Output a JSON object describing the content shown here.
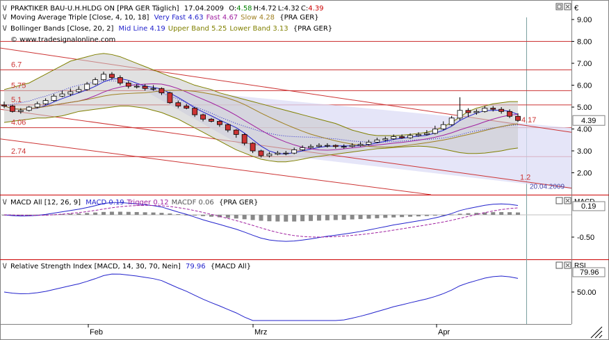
{
  "header": {
    "title": "PRAKTIKER BAU-U.H.HLDG ON [PRA GER  Täglich]",
    "date": "17.04.2009",
    "ohlc": [
      {
        "label": "O:",
        "value": "4.58",
        "color": "#008000"
      },
      {
        "label": "H:",
        "value": "4.72",
        "color": "#000000"
      },
      {
        "label": "L:",
        "value": "4.32",
        "color": "#000000"
      },
      {
        "label": "C:",
        "value": "4.39",
        "color": "#cc0000"
      }
    ],
    "currency": "€"
  },
  "indicators": {
    "ma_triple": {
      "name": "Moving Average Triple [Close, 4, 10, 18]",
      "parts": [
        {
          "text": "Very Fast 4.63",
          "color": "#2222cc"
        },
        {
          "text": "Fast 4.67",
          "color": "#a020a0"
        },
        {
          "text": "Slow 4.28",
          "color": "#a08020"
        }
      ],
      "suffix": "{PRA GER}"
    },
    "bollinger": {
      "name": "Bollinger Bands [Close, 20, 2]",
      "parts": [
        {
          "text": "Mid Line 4.19",
          "color": "#2222cc"
        },
        {
          "text": "Upper Band 5.25",
          "color": "#808000"
        },
        {
          "text": "Lower Band 3.13",
          "color": "#808000"
        }
      ],
      "suffix": "{PRA GER}"
    },
    "watermark": "© www.tradesignalonline.com"
  },
  "price_panel": {
    "y_ticks": [
      "9.00",
      "8.00",
      "7.00",
      "6.00",
      "5.00",
      "4.00",
      "3.00",
      "2.00"
    ],
    "last_price": "4.39",
    "level_labels": [
      "6.7",
      "5.75",
      "5.1",
      "4.06",
      "2.74",
      "4.17",
      "1.2"
    ],
    "trendline_date": "20.04.2009"
  },
  "macd_panel": {
    "title": "MACD All [12, 26, 9]",
    "parts": [
      {
        "text": "MACD 0.19",
        "color": "#2222cc"
      },
      {
        "text": "Trigger 0.12",
        "color": "#a020a0"
      },
      {
        "text": "MACDF 0.06",
        "color": "#555555"
      }
    ],
    "suffix": "{PRA GER}",
    "y_ticks": [
      "0.19",
      "-0.50"
    ],
    "scale_label": "MACD"
  },
  "rsi_panel": {
    "title": "Relative Strength Index [MACD, 14, 30, 70, Nein]",
    "value": "79.96",
    "value_color": "#2222cc",
    "suffix": "{MACD All}",
    "y_ticks": [
      "79.96",
      "50.00"
    ],
    "scale_label": "RSI"
  },
  "x_axis": {
    "labels": [
      "Feb",
      "Mrz",
      "Apr"
    ]
  },
  "chart_data": {
    "type": "candlestick",
    "title": "PRAKTIKER BAU-U.H.HLDG ON [PRA GER  Täglich]",
    "dates": [
      "2009-01-19",
      "2009-01-20",
      "2009-01-21",
      "2009-01-22",
      "2009-01-23",
      "2009-01-26",
      "2009-01-27",
      "2009-01-28",
      "2009-01-29",
      "2009-01-30",
      "2009-02-02",
      "2009-02-03",
      "2009-02-04",
      "2009-02-05",
      "2009-02-06",
      "2009-02-09",
      "2009-02-10",
      "2009-02-11",
      "2009-02-12",
      "2009-02-13",
      "2009-02-16",
      "2009-02-17",
      "2009-02-18",
      "2009-02-19",
      "2009-02-20",
      "2009-02-23",
      "2009-02-24",
      "2009-02-25",
      "2009-02-26",
      "2009-02-27",
      "2009-03-02",
      "2009-03-03",
      "2009-03-04",
      "2009-03-05",
      "2009-03-06",
      "2009-03-09",
      "2009-03-10",
      "2009-03-11",
      "2009-03-12",
      "2009-03-13",
      "2009-03-16",
      "2009-03-17",
      "2009-03-18",
      "2009-03-19",
      "2009-03-20",
      "2009-03-23",
      "2009-03-24",
      "2009-03-25",
      "2009-03-26",
      "2009-03-27",
      "2009-03-30",
      "2009-03-31",
      "2009-04-01",
      "2009-04-02",
      "2009-04-03",
      "2009-04-06",
      "2009-04-07",
      "2009-04-08",
      "2009-04-09",
      "2009-04-14",
      "2009-04-15",
      "2009-04-16",
      "2009-04-17"
    ],
    "open": [
      5.1,
      5.05,
      4.8,
      4.85,
      5.0,
      5.15,
      5.3,
      5.5,
      5.6,
      5.7,
      5.8,
      6.05,
      6.25,
      6.5,
      6.35,
      6.1,
      5.95,
      5.95,
      5.85,
      5.85,
      5.65,
      5.2,
      5.05,
      4.95,
      4.65,
      4.45,
      4.35,
      4.2,
      3.95,
      3.75,
      3.35,
      3.0,
      2.78,
      2.85,
      2.9,
      2.9,
      3.05,
      3.15,
      3.2,
      3.25,
      3.25,
      3.2,
      3.2,
      3.25,
      3.3,
      3.4,
      3.5,
      3.55,
      3.65,
      3.6,
      3.7,
      3.75,
      3.8,
      4.0,
      4.2,
      4.5,
      4.85,
      4.75,
      4.8,
      4.95,
      4.9,
      4.8,
      4.58
    ],
    "close": [
      5.05,
      4.8,
      4.85,
      5.0,
      5.15,
      5.3,
      5.5,
      5.6,
      5.7,
      5.8,
      6.05,
      6.25,
      6.5,
      6.35,
      6.1,
      5.95,
      5.95,
      5.85,
      5.85,
      5.65,
      5.2,
      5.05,
      4.95,
      4.65,
      4.45,
      4.35,
      4.2,
      3.95,
      3.75,
      3.35,
      3.0,
      2.78,
      2.85,
      2.9,
      2.9,
      3.05,
      3.15,
      3.2,
      3.25,
      3.25,
      3.2,
      3.2,
      3.25,
      3.3,
      3.4,
      3.5,
      3.55,
      3.65,
      3.6,
      3.7,
      3.75,
      3.8,
      4.0,
      4.2,
      4.5,
      4.85,
      4.75,
      4.8,
      4.95,
      4.9,
      4.8,
      4.58,
      4.39
    ],
    "high": [
      5.25,
      5.1,
      4.95,
      5.05,
      5.25,
      5.4,
      5.6,
      5.75,
      5.85,
      5.95,
      6.15,
      6.35,
      6.62,
      6.6,
      6.45,
      6.2,
      6.05,
      6.05,
      6.0,
      5.9,
      5.7,
      5.3,
      5.15,
      5.0,
      4.7,
      4.5,
      4.4,
      4.25,
      4.0,
      3.8,
      3.4,
      3.05,
      2.95,
      3.0,
      3.0,
      3.15,
      3.25,
      3.3,
      3.35,
      3.35,
      3.3,
      3.3,
      3.35,
      3.4,
      3.5,
      3.6,
      3.65,
      3.75,
      3.75,
      3.8,
      3.85,
      3.95,
      4.15,
      4.35,
      4.6,
      5.45,
      4.95,
      4.9,
      5.05,
      5.05,
      5.0,
      4.9,
      4.72
    ],
    "low": [
      4.95,
      4.75,
      4.7,
      4.8,
      4.95,
      5.1,
      5.25,
      5.45,
      5.5,
      5.65,
      5.75,
      6.0,
      6.2,
      6.25,
      6.0,
      5.85,
      5.85,
      5.75,
      5.75,
      5.55,
      5.15,
      4.95,
      4.9,
      4.55,
      4.35,
      4.3,
      4.1,
      3.85,
      3.6,
      3.25,
      2.9,
      2.7,
      2.7,
      2.8,
      2.8,
      2.85,
      3.0,
      3.1,
      3.15,
      3.15,
      3.1,
      3.1,
      3.15,
      3.2,
      3.25,
      3.35,
      3.45,
      3.5,
      3.55,
      3.55,
      3.65,
      3.7,
      3.75,
      3.95,
      4.15,
      4.4,
      4.55,
      4.65,
      4.75,
      4.8,
      4.7,
      4.5,
      4.32
    ],
    "bollinger_upper": [
      5.8,
      5.9,
      6.0,
      6.1,
      6.3,
      6.5,
      6.7,
      6.9,
      7.1,
      7.2,
      7.3,
      7.4,
      7.45,
      7.4,
      7.3,
      7.15,
      7.0,
      6.85,
      6.7,
      6.55,
      6.4,
      6.3,
      6.15,
      6.0,
      5.9,
      5.8,
      5.65,
      5.55,
      5.45,
      5.35,
      5.25,
      5.15,
      5.05,
      4.95,
      4.85,
      4.75,
      4.65,
      4.55,
      4.45,
      4.35,
      4.25,
      4.1,
      3.95,
      3.85,
      3.75,
      3.7,
      3.7,
      3.7,
      3.72,
      3.75,
      3.8,
      3.85,
      3.95,
      4.1,
      4.3,
      4.55,
      4.8,
      4.95,
      5.05,
      5.15,
      5.2,
      5.25,
      5.25
    ],
    "bollinger_lower": [
      4.3,
      4.35,
      4.4,
      4.45,
      4.5,
      4.5,
      4.55,
      4.6,
      4.7,
      4.8,
      4.85,
      4.9,
      4.95,
      5.0,
      5.05,
      5.05,
      5.0,
      4.95,
      4.85,
      4.75,
      4.6,
      4.45,
      4.25,
      4.05,
      3.85,
      3.65,
      3.45,
      3.25,
      3.05,
      2.9,
      2.75,
      2.62,
      2.55,
      2.5,
      2.5,
      2.55,
      2.62,
      2.7,
      2.75,
      2.8,
      2.85,
      2.9,
      2.95,
      3.0,
      3.05,
      3.1,
      3.12,
      3.15,
      3.18,
      3.2,
      3.22,
      3.2,
      3.15,
      3.08,
      3.0,
      2.92,
      2.88,
      2.88,
      2.9,
      2.95,
      3.0,
      3.08,
      3.13
    ],
    "horizontal_levels": [
      8.0,
      6.7,
      5.75,
      5.1,
      4.06,
      2.74
    ],
    "ylim": [
      1.0,
      9.7
    ],
    "last": 4.39
  }
}
